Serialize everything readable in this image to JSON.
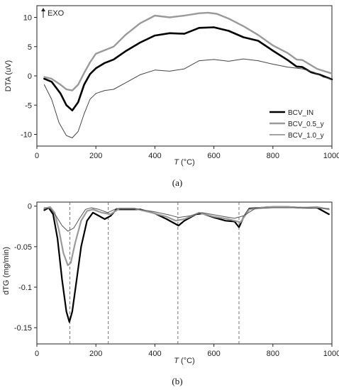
{
  "chart_data": [
    {
      "panel": "a",
      "type": "line",
      "caption": "(a)",
      "xlabel_italic": "T",
      "xlabel_unit": " (°C)",
      "ylabel": "DTA (uV)",
      "xlim": [
        0,
        1000
      ],
      "ylim": [
        -12,
        12
      ],
      "xticks": [
        0,
        200,
        400,
        600,
        800,
        1000
      ],
      "yticks": [
        10,
        5,
        0,
        -5,
        -10
      ],
      "annotation": "EXO",
      "legend_position": "bottom-right",
      "series": [
        {
          "name": "BCV_IN",
          "color": "#000000",
          "width": 2.6,
          "points": [
            [
              25,
              -0.5
            ],
            [
              50,
              -1.0
            ],
            [
              80,
              -3.0
            ],
            [
              100,
              -5.0
            ],
            [
              120,
              -5.9
            ],
            [
              140,
              -4.5
            ],
            [
              160,
              -1.5
            ],
            [
              180,
              0.3
            ],
            [
              200,
              1.3
            ],
            [
              230,
              2.2
            ],
            [
              260,
              2.8
            ],
            [
              300,
              4.2
            ],
            [
              350,
              5.7
            ],
            [
              400,
              6.9
            ],
            [
              450,
              7.3
            ],
            [
              500,
              7.2
            ],
            [
              550,
              8.2
            ],
            [
              600,
              8.3
            ],
            [
              650,
              7.7
            ],
            [
              700,
              6.6
            ],
            [
              750,
              6.0
            ],
            [
              800,
              4.3
            ],
            [
              850,
              2.7
            ],
            [
              880,
              1.6
            ],
            [
              900,
              1.5
            ],
            [
              930,
              0.6
            ],
            [
              960,
              0.2
            ],
            [
              1000,
              -0.6
            ]
          ]
        },
        {
          "name": "BCV_0.5_y",
          "color": "#9a9a9a",
          "width": 2.4,
          "points": [
            [
              25,
              -0.2
            ],
            [
              50,
              -0.5
            ],
            [
              80,
              -1.5
            ],
            [
              100,
              -2.3
            ],
            [
              120,
              -2.5
            ],
            [
              140,
              -1.5
            ],
            [
              160,
              0.5
            ],
            [
              180,
              2.3
            ],
            [
              200,
              3.8
            ],
            [
              230,
              4.4
            ],
            [
              260,
              5.0
            ],
            [
              300,
              7.0
            ],
            [
              350,
              9.0
            ],
            [
              400,
              10.3
            ],
            [
              450,
              10.0
            ],
            [
              500,
              10.3
            ],
            [
              550,
              10.7
            ],
            [
              580,
              10.8
            ],
            [
              610,
              10.6
            ],
            [
              650,
              9.8
            ],
            [
              700,
              8.5
            ],
            [
              750,
              7.0
            ],
            [
              800,
              5.2
            ],
            [
              850,
              3.9
            ],
            [
              880,
              2.8
            ],
            [
              900,
              2.7
            ],
            [
              950,
              1.2
            ],
            [
              1000,
              0.4
            ]
          ]
        },
        {
          "name": "BCV_1.0_y",
          "color": "#444444",
          "width": 1.0,
          "points": [
            [
              25,
              -1.5
            ],
            [
              50,
              -4.0
            ],
            [
              75,
              -8.0
            ],
            [
              100,
              -10.2
            ],
            [
              120,
              -10.6
            ],
            [
              140,
              -9.5
            ],
            [
              160,
              -6.5
            ],
            [
              180,
              -4.0
            ],
            [
              200,
              -3.0
            ],
            [
              230,
              -2.5
            ],
            [
              260,
              -2.3
            ],
            [
              300,
              -1.2
            ],
            [
              350,
              0.2
            ],
            [
              400,
              1.0
            ],
            [
              450,
              0.8
            ],
            [
              500,
              1.2
            ],
            [
              550,
              2.6
            ],
            [
              600,
              2.8
            ],
            [
              650,
              2.5
            ],
            [
              700,
              2.9
            ],
            [
              750,
              2.6
            ],
            [
              800,
              2.0
            ],
            [
              850,
              1.5
            ],
            [
              900,
              1.2
            ],
            [
              940,
              0.6
            ],
            [
              970,
              -0.2
            ],
            [
              1000,
              -0.6
            ]
          ]
        }
      ]
    },
    {
      "panel": "b",
      "type": "line",
      "caption": "(b)",
      "xlabel_italic": "T",
      "xlabel_unit": " (°C)",
      "ylabel": "dTG (mg/min)",
      "xlim": [
        0,
        1000
      ],
      "ylim": [
        -0.17,
        0.005
      ],
      "xticks": [
        0,
        200,
        400,
        600,
        800,
        1000
      ],
      "yticks": [
        "0",
        "-0.05",
        "-0.1",
        "-0.15"
      ],
      "ytick_values": [
        0,
        -0.05,
        -0.1,
        -0.15
      ],
      "vlines": [
        112,
        242,
        478,
        685
      ],
      "series": [
        {
          "name": "BCV_IN",
          "color": "#000000",
          "width": 2.2,
          "points": [
            [
              25,
              -0.005
            ],
            [
              40,
              -0.002
            ],
            [
              55,
              -0.01
            ],
            [
              70,
              -0.04
            ],
            [
              85,
              -0.09
            ],
            [
              100,
              -0.13
            ],
            [
              110,
              -0.143
            ],
            [
              120,
              -0.13
            ],
            [
              135,
              -0.09
            ],
            [
              150,
              -0.05
            ],
            [
              170,
              -0.018
            ],
            [
              190,
              -0.008
            ],
            [
              210,
              -0.012
            ],
            [
              230,
              -0.016
            ],
            [
              250,
              -0.012
            ],
            [
              270,
              -0.004
            ],
            [
              300,
              -0.004
            ],
            [
              350,
              -0.004
            ],
            [
              400,
              -0.009
            ],
            [
              440,
              -0.016
            ],
            [
              460,
              -0.02
            ],
            [
              480,
              -0.024
            ],
            [
              500,
              -0.018
            ],
            [
              540,
              -0.01
            ],
            [
              560,
              -0.009
            ],
            [
              600,
              -0.014
            ],
            [
              640,
              -0.018
            ],
            [
              670,
              -0.019
            ],
            [
              685,
              -0.026
            ],
            [
              700,
              -0.014
            ],
            [
              720,
              -0.003
            ],
            [
              760,
              -0.002
            ],
            [
              800,
              -0.001
            ],
            [
              850,
              -0.001
            ],
            [
              900,
              -0.002
            ],
            [
              950,
              -0.002
            ],
            [
              990,
              -0.01
            ]
          ]
        },
        {
          "name": "BCV_0.5_y",
          "color": "#9a9a9a",
          "width": 2.2,
          "points": [
            [
              25,
              -0.003
            ],
            [
              45,
              -0.001
            ],
            [
              60,
              -0.008
            ],
            [
              75,
              -0.03
            ],
            [
              90,
              -0.058
            ],
            [
              105,
              -0.073
            ],
            [
              115,
              -0.07
            ],
            [
              130,
              -0.045
            ],
            [
              150,
              -0.018
            ],
            [
              170,
              -0.006
            ],
            [
              190,
              -0.004
            ],
            [
              220,
              -0.008
            ],
            [
              250,
              -0.01
            ],
            [
              280,
              -0.003
            ],
            [
              330,
              -0.003
            ],
            [
              390,
              -0.008
            ],
            [
              440,
              -0.013
            ],
            [
              470,
              -0.018
            ],
            [
              500,
              -0.016
            ],
            [
              550,
              -0.008
            ],
            [
              600,
              -0.013
            ],
            [
              650,
              -0.016
            ],
            [
              690,
              -0.02
            ],
            [
              720,
              -0.004
            ],
            [
              780,
              -0.001
            ],
            [
              850,
              -0.001
            ],
            [
              900,
              -0.002
            ],
            [
              950,
              -0.001
            ],
            [
              990,
              -0.004
            ]
          ]
        },
        {
          "name": "BCV_1.0_y",
          "color": "#555555",
          "width": 1.0,
          "points": [
            [
              25,
              -0.002
            ],
            [
              45,
              -0.003
            ],
            [
              65,
              -0.012
            ],
            [
              85,
              -0.024
            ],
            [
              105,
              -0.031
            ],
            [
              125,
              -0.027
            ],
            [
              145,
              -0.015
            ],
            [
              165,
              -0.004
            ],
            [
              185,
              -0.002
            ],
            [
              210,
              -0.004
            ],
            [
              240,
              -0.008
            ],
            [
              270,
              -0.003
            ],
            [
              330,
              -0.003
            ],
            [
              400,
              -0.007
            ],
            [
              450,
              -0.011
            ],
            [
              480,
              -0.014
            ],
            [
              520,
              -0.012
            ],
            [
              560,
              -0.008
            ],
            [
              620,
              -0.012
            ],
            [
              670,
              -0.015
            ],
            [
              700,
              -0.012
            ],
            [
              740,
              -0.003
            ],
            [
              800,
              -0.002
            ],
            [
              900,
              -0.002
            ],
            [
              990,
              -0.003
            ]
          ]
        }
      ]
    }
  ]
}
